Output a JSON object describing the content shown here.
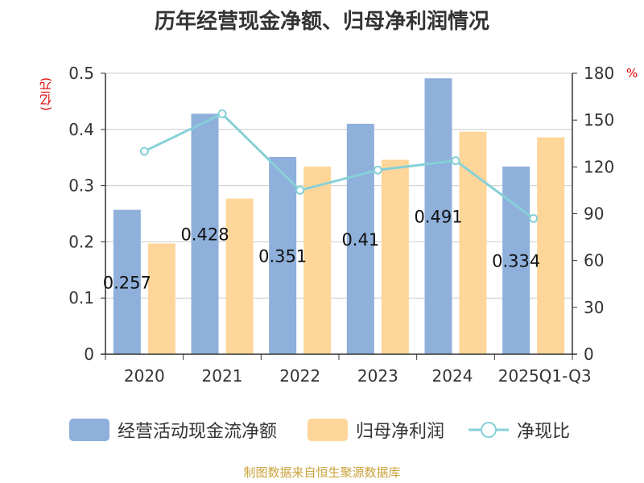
{
  "title": "历年经营现金净额、归母净利润情况",
  "left_unit": "(亿元)",
  "right_unit": "%",
  "source": "制图数据来自恒生聚源数据库",
  "colors": {
    "cash_flow": "#8eb0db",
    "net_profit": "#ffd699",
    "ratio": "#86d0d8",
    "axis": "#333333",
    "grid": "#cccccc",
    "unit": "#e00000"
  },
  "legend": [
    {
      "label": "经营活动现金流净额",
      "type": "bar",
      "color_key": "cash_flow"
    },
    {
      "label": "归母净利润",
      "type": "bar",
      "color_key": "net_profit"
    },
    {
      "label": "净现比",
      "type": "line",
      "color_key": "ratio"
    }
  ],
  "chart_data": {
    "type": "bar",
    "title": "历年经营现金净额、归母净利润情况",
    "categories": [
      "2020",
      "2021",
      "2022",
      "2023",
      "2024",
      "2025Q1-Q3"
    ],
    "series": [
      {
        "name": "经营活动现金流净额",
        "type": "bar",
        "axis": "left",
        "values": [
          0.257,
          0.428,
          0.351,
          0.41,
          0.491,
          0.334
        ],
        "data_labels": [
          "0.257",
          "0.428",
          "0.351",
          "0.41",
          "0.491",
          "0.334"
        ]
      },
      {
        "name": "归母净利润",
        "type": "bar",
        "axis": "left",
        "values": [
          0.197,
          0.277,
          0.334,
          0.346,
          0.396,
          0.386
        ]
      },
      {
        "name": "净现比",
        "type": "line",
        "axis": "right",
        "values": [
          130,
          154,
          105,
          118,
          124,
          87
        ]
      }
    ],
    "y_left": {
      "label": "(亿元)",
      "range": [
        0,
        0.5
      ],
      "ticks": [
        "0",
        "0.1",
        "0.2",
        "0.3",
        "0.4",
        "0.5"
      ]
    },
    "y_right": {
      "label": "%",
      "range": [
        0,
        180
      ],
      "ticks": [
        "0",
        "30",
        "60",
        "90",
        "120",
        "150",
        "180"
      ]
    },
    "grid": true,
    "legend_position": "bottom"
  }
}
